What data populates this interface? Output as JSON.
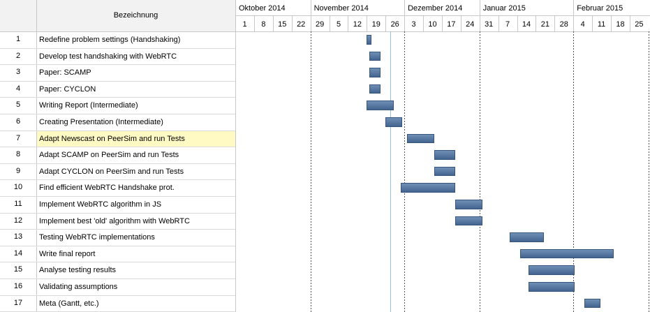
{
  "header": {
    "name_column": "Bezeichnung"
  },
  "timeline": {
    "months": [
      "Oktober 2014",
      "November 2014",
      "Dezember 2014",
      "Januar 2015",
      "Februar 2015"
    ],
    "weeks": [
      "1",
      "8",
      "15",
      "22",
      "29",
      "5",
      "12",
      "19",
      "26",
      "3",
      "10",
      "17",
      "24",
      "31",
      "7",
      "14",
      "21",
      "28",
      "4",
      "11",
      "18",
      "25"
    ]
  },
  "tasks": [
    {
      "id": "1",
      "name": "Redefine problem settings (Handshaking)",
      "start": 7.0,
      "end": 7.25
    },
    {
      "id": "2",
      "name": "Develop test handshaking with WebRTC",
      "start": 7.15,
      "end": 7.72
    },
    {
      "id": "3",
      "name": "Paper: SCAMP",
      "start": 7.15,
      "end": 7.72
    },
    {
      "id": "4",
      "name": "Paper: CYCLON",
      "start": 7.15,
      "end": 7.72
    },
    {
      "id": "5",
      "name": "Writing Report (Intermediate)",
      "start": 7.0,
      "end": 8.45
    },
    {
      "id": "6",
      "name": "Creating Presentation (Intermediate)",
      "start": 8.0,
      "end": 8.9
    },
    {
      "id": "7",
      "name": "Adapt Newscast on PeerSim and run Tests",
      "start": 9.15,
      "end": 10.6
    },
    {
      "id": "8",
      "name": "Adapt SCAMP on PeerSim and run Tests",
      "start": 10.6,
      "end": 11.7
    },
    {
      "id": "9",
      "name": "Adapt CYCLON on PeerSim and run Tests",
      "start": 10.6,
      "end": 11.7
    },
    {
      "id": "10",
      "name": "Find efficient WebRTC Handshake prot.",
      "start": 8.8,
      "end": 11.7
    },
    {
      "id": "11",
      "name": "Implement WebRTC algorithm in JS",
      "start": 11.7,
      "end": 13.15
    },
    {
      "id": "12",
      "name": "Implement best 'old' algorithm with WebRTC",
      "start": 11.7,
      "end": 13.15
    },
    {
      "id": "13",
      "name": "Testing WebRTC implementations",
      "start": 14.6,
      "end": 16.45
    },
    {
      "id": "14",
      "name": "Write final report",
      "start": 15.15,
      "end": 20.15
    },
    {
      "id": "15",
      "name": "Analyse testing results",
      "start": 15.6,
      "end": 18.05
    },
    {
      "id": "16",
      "name": "Validating assumptions",
      "start": 15.6,
      "end": 18.05
    },
    {
      "id": "17",
      "name": "Meta (Gantt, etc.)",
      "start": 18.6,
      "end": 19.45
    }
  ],
  "selected_task": "7"
}
